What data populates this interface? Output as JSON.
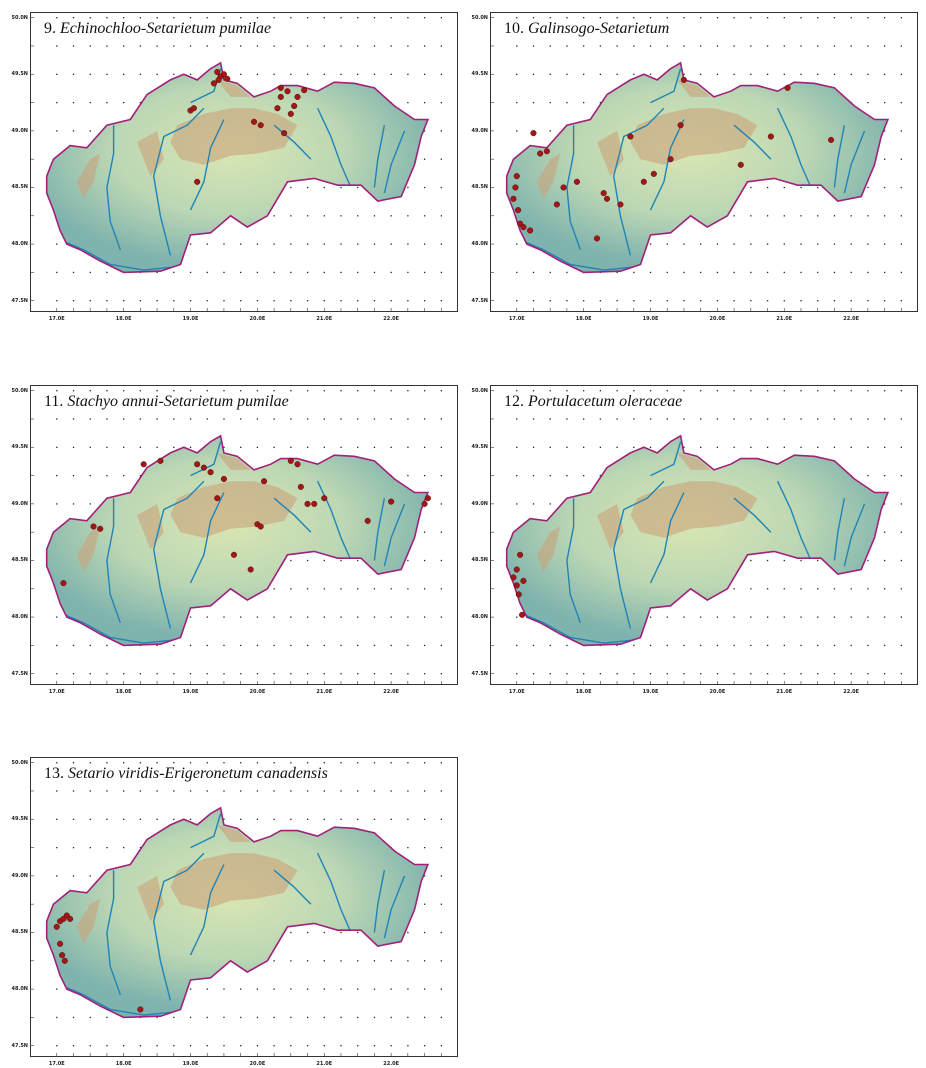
{
  "colors": {
    "border": "#a0207a",
    "lowland": "#7fb3ad",
    "upland": "#d9e6b3",
    "mountain": "#c9a27a",
    "river": "#1e84b8",
    "occurrence": "#a01818",
    "frame": "#333333"
  },
  "axes": {
    "y_labels": [
      "50.0N",
      "49.5N",
      "49.0N",
      "48.5N",
      "48.0N",
      "47.5N"
    ],
    "x_labels": [
      "17.0E",
      "18.0E",
      "19.0E",
      "20.0E",
      "21.0E",
      "22.0E"
    ]
  },
  "maps": [
    {
      "number": "9.",
      "name": "Echinochloo-Setarietum pumilae",
      "points": [
        [
          19.4,
          49.52
        ],
        [
          19.45,
          49.48
        ],
        [
          19.5,
          49.5
        ],
        [
          19.42,
          49.45
        ],
        [
          19.55,
          49.46
        ],
        [
          19.35,
          49.42
        ],
        [
          19.0,
          49.18
        ],
        [
          19.05,
          49.2
        ],
        [
          19.95,
          49.08
        ],
        [
          20.05,
          49.05
        ],
        [
          20.3,
          49.2
        ],
        [
          20.35,
          49.3
        ],
        [
          20.45,
          49.35
        ],
        [
          20.6,
          49.3
        ],
        [
          20.7,
          49.36
        ],
        [
          20.5,
          49.15
        ],
        [
          20.4,
          48.98
        ],
        [
          19.1,
          48.55
        ],
        [
          20.35,
          49.38
        ],
        [
          20.55,
          49.22
        ]
      ]
    },
    {
      "number": "10.",
      "name": "Galinsogo-Setarietum",
      "points": [
        [
          16.95,
          48.4
        ],
        [
          16.98,
          48.5
        ],
        [
          17.0,
          48.6
        ],
        [
          17.02,
          48.3
        ],
        [
          17.05,
          48.18
        ],
        [
          17.1,
          48.15
        ],
        [
          17.2,
          48.12
        ],
        [
          17.35,
          48.8
        ],
        [
          17.45,
          48.82
        ],
        [
          17.6,
          48.35
        ],
        [
          17.7,
          48.5
        ],
        [
          17.9,
          48.55
        ],
        [
          18.3,
          48.45
        ],
        [
          18.55,
          48.35
        ],
        [
          18.9,
          48.55
        ],
        [
          19.05,
          48.62
        ],
        [
          19.45,
          49.05
        ],
        [
          19.3,
          48.75
        ],
        [
          18.7,
          48.95
        ],
        [
          18.35,
          48.4
        ],
        [
          19.5,
          49.45
        ],
        [
          20.35,
          48.7
        ],
        [
          20.8,
          48.95
        ],
        [
          21.7,
          48.92
        ],
        [
          21.05,
          49.38
        ],
        [
          18.2,
          48.05
        ],
        [
          17.25,
          48.98
        ]
      ]
    },
    {
      "number": "11.",
      "name": "Stachyo annui-Setarietum pumilae",
      "points": [
        [
          17.1,
          48.3
        ],
        [
          17.55,
          48.8
        ],
        [
          17.65,
          48.78
        ],
        [
          18.3,
          49.35
        ],
        [
          18.55,
          49.38
        ],
        [
          19.1,
          49.35
        ],
        [
          19.2,
          49.32
        ],
        [
          19.3,
          49.28
        ],
        [
          19.5,
          49.22
        ],
        [
          20.0,
          48.82
        ],
        [
          20.05,
          48.8
        ],
        [
          20.5,
          49.38
        ],
        [
          20.6,
          49.35
        ],
        [
          20.65,
          49.15
        ],
        [
          20.75,
          49.0
        ],
        [
          20.85,
          49.0
        ],
        [
          21.0,
          49.05
        ],
        [
          21.65,
          48.85
        ],
        [
          22.0,
          49.02
        ],
        [
          22.5,
          49.0
        ],
        [
          22.55,
          49.05
        ],
        [
          19.4,
          49.05
        ],
        [
          19.65,
          48.55
        ],
        [
          19.9,
          48.42
        ],
        [
          20.1,
          49.2
        ]
      ]
    },
    {
      "number": "12.",
      "name": "Portulacetum oleraceae",
      "points": [
        [
          16.95,
          48.35
        ],
        [
          17.0,
          48.28
        ],
        [
          17.03,
          48.2
        ],
        [
          17.1,
          48.32
        ],
        [
          17.05,
          48.55
        ],
        [
          17.0,
          48.42
        ],
        [
          17.08,
          48.02
        ]
      ]
    },
    {
      "number": "13.",
      "name": "Setario viridis-Erigeronetum canadensis",
      "points": [
        [
          17.0,
          48.55
        ],
        [
          17.05,
          48.6
        ],
        [
          17.1,
          48.62
        ],
        [
          17.15,
          48.65
        ],
        [
          17.2,
          48.62
        ],
        [
          17.08,
          48.3
        ],
        [
          17.12,
          48.25
        ],
        [
          17.05,
          48.4
        ],
        [
          18.25,
          47.82
        ]
      ]
    }
  ]
}
